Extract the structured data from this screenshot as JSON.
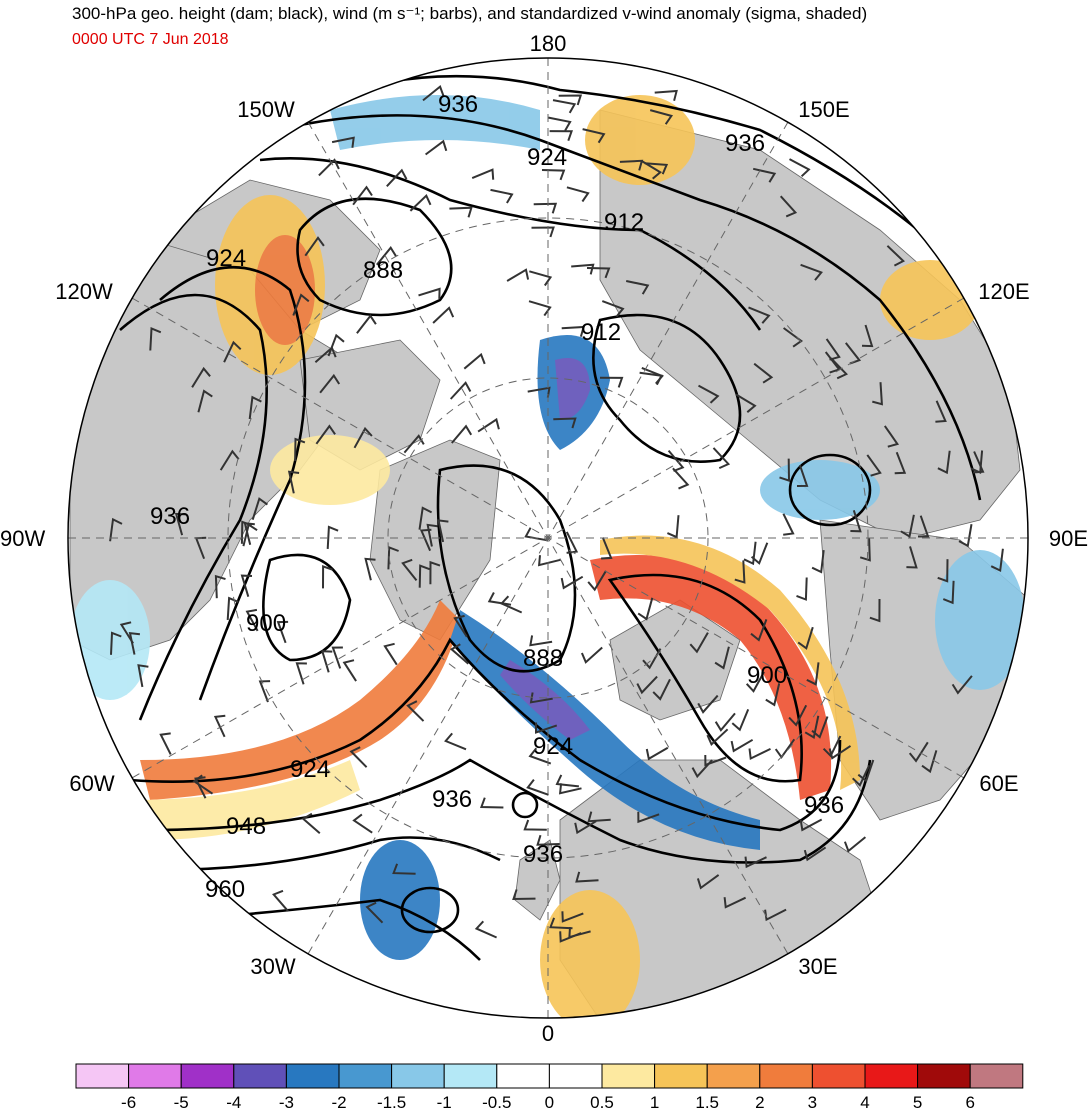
{
  "header": {
    "title": "300-hPa geo. height (dam; black), wind (m s⁻¹; barbs), and standardized v-wind anomaly (sigma, shaded)",
    "valid_time": "0000 UTC 7 Jun 2018",
    "valid_time_color": "#e00000"
  },
  "map": {
    "projection": "north-polar-stereographic",
    "longitude_labels": {
      "top": "180",
      "bottom": "0",
      "left": "90W",
      "right": "90E",
      "upper_left": "150W",
      "upper_right": "150E",
      "left_upper": "120W",
      "right_upper": "120E",
      "left_lower": "60W",
      "right_lower": "60E",
      "lower_left": "30W",
      "lower_right": "30E"
    },
    "height_contour_labels": [
      "936",
      "924",
      "912",
      "888",
      "924",
      "912",
      "936",
      "900",
      "888",
      "924",
      "900",
      "924",
      "936",
      "936",
      "948",
      "960",
      "936"
    ],
    "contour_color": "#000000",
    "land_color": "#c8c8c8",
    "ocean_color": "#ffffff"
  },
  "colorbar": {
    "ticks": [
      "-6",
      "-5",
      "-4",
      "-3",
      "-2",
      "-1.5",
      "-1",
      "-0.5",
      "0",
      "0.5",
      "1",
      "1.5",
      "2",
      "3",
      "4",
      "5",
      "6"
    ],
    "colors": [
      "#f5c6f5",
      "#e07ae8",
      "#a030c8",
      "#6050b8",
      "#2878c0",
      "#4898d0",
      "#88c8e8",
      "#b4e8f6",
      "#ffffff",
      "#ffffff",
      "#fde9a0",
      "#f6c458",
      "#f4a04c",
      "#f07c3c",
      "#ee5030",
      "#e81818",
      "#a00a0a",
      "#c07880"
    ]
  }
}
